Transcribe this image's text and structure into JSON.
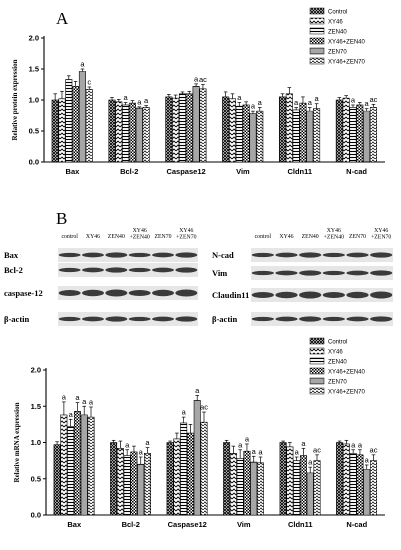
{
  "figure": {
    "panel_a_label": "A",
    "panel_b_label": "B",
    "western_blot": {
      "left": {
        "lanes": [
          "control",
          "XY46",
          "ZEN40",
          "XY46\n+ZEN40",
          "ZEN70",
          "XY46\n+ZEN70"
        ],
        "proteins": [
          "Bax",
          "Bcl-2",
          "caspase-12",
          "β-actin"
        ]
      },
      "right": {
        "lanes": [
          "control",
          "XY46",
          "ZEN40",
          "XY46\n+ZEN40",
          "ZEN70",
          "XY46\n+ZEN70"
        ],
        "proteins": [
          "N-cad",
          "Vim",
          "Claudin11",
          "β-actin"
        ]
      }
    }
  },
  "chart_data": [
    {
      "type": "bar",
      "title": "",
      "xlabel": "",
      "ylabel": "Relative protein expression",
      "ylim": [
        0,
        2.0
      ],
      "yticks": [
        "0.0",
        "0.5",
        "1.0",
        "1.5",
        "2.0"
      ],
      "categories": [
        "Bax",
        "Bcl-2",
        "Caspase12",
        "Vim",
        "Cldn11",
        "N-cad"
      ],
      "legend_position": "top-right",
      "series": [
        {
          "name": "Control",
          "pattern": "crosshatch",
          "values": [
            1.0,
            1.0,
            1.05,
            1.05,
            1.05,
            1.0
          ],
          "errors": [
            0.1,
            0.04,
            0.04,
            0.08,
            0.05,
            0.04
          ]
        },
        {
          "name": "XY46",
          "pattern": "zigzag",
          "values": [
            1.02,
            0.97,
            1.03,
            1.02,
            1.1,
            1.03
          ],
          "errors": [
            0.12,
            0.04,
            0.05,
            0.08,
            0.1,
            0.04
          ]
        },
        {
          "name": "ZEN40",
          "pattern": "hlines",
          "values": [
            1.33,
            0.92,
            1.1,
            0.9,
            0.84,
            0.88
          ],
          "errors": [
            0.06,
            0.04,
            0.03,
            0.06,
            0.04,
            0.04
          ]
        },
        {
          "name": "XY46+ZEN40",
          "pattern": "checker",
          "values": [
            1.22,
            0.95,
            1.1,
            0.92,
            0.95,
            0.92
          ],
          "errors": [
            0.08,
            0.04,
            0.04,
            0.05,
            0.1,
            0.04
          ]
        },
        {
          "name": "ZEN70",
          "pattern": "hlines-fine",
          "values": [
            1.46,
            0.87,
            1.22,
            0.78,
            0.82,
            0.82
          ],
          "errors": [
            0.04,
            0.02,
            0.04,
            0.04,
            0.06,
            0.04
          ]
        },
        {
          "name": "XY46+ZEN70",
          "pattern": "waves",
          "values": [
            1.17,
            0.88,
            1.18,
            0.82,
            0.86,
            0.88
          ],
          "errors": [
            0.04,
            0.03,
            0.07,
            0.06,
            0.08,
            0.05
          ]
        }
      ],
      "annotations": [
        {
          "category": "Bax",
          "series": "ZEN70",
          "text": "a"
        },
        {
          "category": "Bax",
          "series": "XY46+ZEN70",
          "text": "c"
        },
        {
          "category": "Bcl-2",
          "series": "ZEN40",
          "text": "a"
        },
        {
          "category": "Bcl-2",
          "series": "ZEN70",
          "text": "a"
        },
        {
          "category": "Bcl-2",
          "series": "XY46+ZEN70",
          "text": "a"
        },
        {
          "category": "Caspase12",
          "series": "ZEN70",
          "text": "a"
        },
        {
          "category": "Caspase12",
          "series": "XY46+ZEN70",
          "text": "ac"
        },
        {
          "category": "Vim",
          "series": "ZEN40",
          "text": "a"
        },
        {
          "category": "Vim",
          "series": "ZEN70",
          "text": "a"
        },
        {
          "category": "Vim",
          "series": "XY46+ZEN70",
          "text": "a"
        },
        {
          "category": "Cldn11",
          "series": "ZEN40",
          "text": "a"
        },
        {
          "category": "Cldn11",
          "series": "ZEN70",
          "text": "a"
        },
        {
          "category": "Cldn11",
          "series": "XY46+ZEN70",
          "text": "a"
        },
        {
          "category": "N-cad",
          "series": "ZEN40",
          "text": "a"
        },
        {
          "category": "N-cad",
          "series": "ZEN70",
          "text": "a"
        },
        {
          "category": "N-cad",
          "series": "XY46+ZEN70",
          "text": "ac"
        }
      ]
    },
    {
      "type": "bar",
      "title": "",
      "xlabel": "",
      "ylabel": "Relative mRNA expression",
      "ylim": [
        0,
        2.0
      ],
      "yticks": [
        "0.0",
        "0.5",
        "1.0",
        "1.5",
        "2.0"
      ],
      "categories": [
        "Bax",
        "Bcl-2",
        "Caspase12",
        "Vim",
        "Cldn11",
        "N-cad"
      ],
      "legend_position": "top-right",
      "series": [
        {
          "name": "Control",
          "pattern": "crosshatch",
          "values": [
            0.97,
            1.0,
            1.0,
            1.0,
            1.0,
            1.0
          ],
          "errors": [
            0.04,
            0.03,
            0.02,
            0.03,
            0.02,
            0.02
          ]
        },
        {
          "name": "XY46",
          "pattern": "zigzag",
          "values": [
            1.38,
            0.92,
            1.05,
            0.85,
            0.94,
            0.98
          ],
          "errors": [
            0.18,
            0.1,
            0.08,
            0.1,
            0.06,
            0.05
          ]
        },
        {
          "name": "ZEN40",
          "pattern": "hlines",
          "values": [
            1.22,
            0.82,
            1.27,
            0.78,
            0.75,
            0.85
          ],
          "errors": [
            0.1,
            0.08,
            0.08,
            0.12,
            0.05,
            0.05
          ]
        },
        {
          "name": "XY46+ZEN40",
          "pattern": "checker",
          "values": [
            1.43,
            0.87,
            1.13,
            0.88,
            0.82,
            0.83
          ],
          "errors": [
            0.12,
            0.08,
            0.12,
            0.1,
            0.1,
            0.07
          ]
        },
        {
          "name": "ZEN70",
          "pattern": "hlines-fine",
          "values": [
            1.38,
            0.7,
            1.58,
            0.73,
            0.58,
            0.63
          ],
          "errors": [
            0.12,
            0.1,
            0.07,
            0.08,
            0.08,
            0.06
          ]
        },
        {
          "name": "XY46+ZEN70",
          "pattern": "waves",
          "values": [
            1.35,
            0.85,
            1.28,
            0.72,
            0.75,
            0.75
          ],
          "errors": [
            0.14,
            0.08,
            0.14,
            0.08,
            0.08,
            0.08
          ]
        }
      ],
      "annotations": [
        {
          "category": "Bax",
          "series": "XY46",
          "text": "a"
        },
        {
          "category": "Bax",
          "series": "ZEN40",
          "text": "a"
        },
        {
          "category": "Bax",
          "series": "XY46+ZEN40",
          "text": "a"
        },
        {
          "category": "Bax",
          "series": "ZEN70",
          "text": "a"
        },
        {
          "category": "Bax",
          "series": "XY46+ZEN70",
          "text": "a"
        },
        {
          "category": "Bcl-2",
          "series": "ZEN40",
          "text": "a"
        },
        {
          "category": "Bcl-2",
          "series": "ZEN70",
          "text": "a"
        },
        {
          "category": "Bcl-2",
          "series": "XY46+ZEN70",
          "text": "a"
        },
        {
          "category": "Caspase12",
          "series": "ZEN40",
          "text": "a"
        },
        {
          "category": "Caspase12",
          "series": "ZEN70",
          "text": "a"
        },
        {
          "category": "Caspase12",
          "series": "XY46+ZEN70",
          "text": "ac"
        },
        {
          "category": "Vim",
          "series": "ZEN40",
          "text": "a"
        },
        {
          "category": "Vim",
          "series": "XY46+ZEN40",
          "text": "a"
        },
        {
          "category": "Vim",
          "series": "ZEN70",
          "text": "a"
        },
        {
          "category": "Vim",
          "series": "XY46+ZEN70",
          "text": "a"
        },
        {
          "category": "Cldn11",
          "series": "ZEN40",
          "text": "a"
        },
        {
          "category": "Cldn11",
          "series": "XY46+ZEN40",
          "text": "a"
        },
        {
          "category": "Cldn11",
          "series": "ZEN70",
          "text": "a"
        },
        {
          "category": "Cldn11",
          "series": "XY46+ZEN70",
          "text": "ac"
        },
        {
          "category": "N-cad",
          "series": "ZEN40",
          "text": "a"
        },
        {
          "category": "N-cad",
          "series": "XY46+ZEN40",
          "text": "a"
        },
        {
          "category": "N-cad",
          "series": "ZEN70",
          "text": "a"
        },
        {
          "category": "N-cad",
          "series": "XY46+ZEN70",
          "text": "ac"
        }
      ]
    }
  ]
}
